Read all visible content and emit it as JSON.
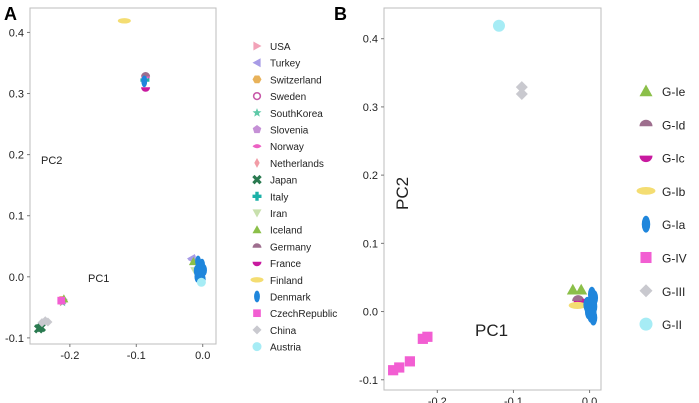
{
  "chart_data": [
    {
      "type": "scatter",
      "panel": "A",
      "xlabel": "PC1",
      "ylabel": "PC2",
      "xlim": [
        -0.26,
        0.02
      ],
      "ylim": [
        -0.11,
        0.44
      ],
      "xticks": [
        "-0.2",
        "-0.1",
        "0.0"
      ],
      "yticks": [
        "-0.1",
        "0.0",
        "0.1",
        "0.2",
        "0.3",
        "0.4"
      ],
      "series": [
        {
          "name": "USA",
          "shape": "tri-right",
          "color": "#f2a2b8",
          "points": [
            [
              -0.005,
              0.008
            ]
          ]
        },
        {
          "name": "Turkey",
          "shape": "tri-left",
          "color": "#a79be6",
          "points": [
            [
              -0.017,
              0.03
            ],
            [
              -0.016,
              0.028
            ]
          ]
        },
        {
          "name": "Switzerland",
          "shape": "hexagon",
          "color": "#e8b25a",
          "points": [
            [
              -0.212,
              -0.038
            ]
          ]
        },
        {
          "name": "Sweden",
          "shape": "ring",
          "color": "#c758a8",
          "points": [
            [
              -0.086,
              0.327
            ],
            [
              -0.004,
              0.005
            ]
          ]
        },
        {
          "name": "SouthKorea",
          "shape": "star",
          "color": "#5fc9a8",
          "points": [
            [
              -0.211,
              -0.042
            ]
          ]
        },
        {
          "name": "Slovenia",
          "shape": "pentagon",
          "color": "#c590d6",
          "points": [
            [
              -0.21,
              -0.039
            ]
          ]
        },
        {
          "name": "Norway",
          "shape": "pinch",
          "color": "#ec61c3",
          "points": [
            [
              -0.086,
              0.328
            ]
          ]
        },
        {
          "name": "Netherlands",
          "shape": "diamond-thin",
          "color": "#f29ca6",
          "points": [
            [
              -0.214,
              -0.04
            ]
          ]
        },
        {
          "name": "Japan",
          "shape": "cross-x",
          "color": "#2a7a50",
          "points": [
            [
              -0.243,
              -0.083
            ],
            [
              -0.247,
              -0.085
            ]
          ]
        },
        {
          "name": "Italy",
          "shape": "plus",
          "color": "#1db1a8",
          "points": [
            [
              -0.087,
              0.322
            ]
          ]
        },
        {
          "name": "Iran",
          "shape": "tri-down",
          "color": "#c8e0ad",
          "points": [
            [
              -0.012,
              0.01
            ]
          ]
        },
        {
          "name": "Iceland",
          "shape": "tri-up",
          "color": "#8bbf49",
          "points": [
            [
              -0.209,
              -0.036
            ],
            [
              -0.014,
              0.025
            ]
          ]
        },
        {
          "name": "Germany",
          "shape": "half-up",
          "color": "#9e6e8e",
          "points": [
            [
              -0.086,
              0.33
            ]
          ]
        },
        {
          "name": "France",
          "shape": "half-down",
          "color": "#c8199f",
          "points": [
            [
              -0.086,
              0.308
            ],
            [
              -0.003,
              -0.003
            ]
          ]
        },
        {
          "name": "Finland",
          "shape": "wide-ellipse",
          "color": "#f4dd72",
          "points": [
            [
              -0.118,
              0.419
            ]
          ]
        },
        {
          "name": "Denmark",
          "shape": "tall-ellipse",
          "color": "#1f86dc",
          "points": [
            [
              -0.088,
              0.32
            ],
            [
              -0.007,
              0.025
            ],
            [
              -0.005,
              0.015
            ],
            [
              -0.001,
              0.02
            ],
            [
              -0.009,
              0.01
            ],
            [
              -0.004,
              0.006
            ],
            [
              0.002,
              0.011
            ],
            [
              -0.008,
              0.0
            ],
            [
              -0.003,
              0.0
            ],
            [
              0.0,
              -0.004
            ]
          ]
        },
        {
          "name": "CzechRepublic",
          "shape": "square",
          "color": "#f25ed2",
          "points": [
            [
              -0.213,
              -0.039
            ]
          ]
        },
        {
          "name": "China",
          "shape": "diamond",
          "color": "#c9c9cf",
          "points": [
            [
              -0.242,
              -0.075
            ],
            [
              -0.237,
              -0.072
            ],
            [
              -0.233,
              -0.074
            ]
          ]
        },
        {
          "name": "Austria",
          "shape": "circle",
          "color": "#a6ecf5",
          "points": [
            [
              -0.002,
              -0.009
            ]
          ]
        }
      ]
    },
    {
      "type": "scatter",
      "panel": "B",
      "xlabel": "PC1",
      "ylabel": "PC2",
      "xlim": [
        -0.27,
        0.015
      ],
      "ylim": [
        -0.115,
        0.445
      ],
      "xticks": [
        "-0.2",
        "-0.1",
        "0.0"
      ],
      "yticks": [
        "-0.1",
        "0.0",
        "0.1",
        "0.2",
        "0.3",
        "0.4"
      ],
      "series": [
        {
          "name": "G-Ie",
          "shape": "tri-up",
          "color": "#8bbf49",
          "points": [
            [
              -0.022,
              0.032
            ],
            [
              -0.011,
              0.032
            ]
          ]
        },
        {
          "name": "G-Id",
          "shape": "half-up",
          "color": "#9e6e8e",
          "points": [
            [
              -0.015,
              0.018
            ]
          ]
        },
        {
          "name": "G-Ic",
          "shape": "half-down",
          "color": "#c8199f",
          "points": [
            [
              -0.013,
              0.013
            ],
            [
              -0.002,
              0.016
            ]
          ]
        },
        {
          "name": "G-Ib",
          "shape": "wide-ellipse",
          "color": "#f4dd72",
          "points": [
            [
              -0.016,
              0.009
            ]
          ]
        },
        {
          "name": "G-Ia",
          "shape": "tall-ellipse",
          "color": "#1f86dc",
          "points": [
            [
              0.003,
              0.025
            ],
            [
              0.004,
              0.015
            ],
            [
              0.005,
              0.007
            ],
            [
              0.004,
              -0.001
            ],
            [
              0.005,
              -0.009
            ],
            [
              -0.003,
              0.01
            ],
            [
              -0.001,
              0.0
            ],
            [
              0.006,
              0.02
            ],
            [
              0.002,
              -0.005
            ]
          ]
        },
        {
          "name": "G-IV",
          "shape": "square",
          "color": "#f25ed2",
          "points": [
            [
              -0.213,
              -0.037
            ],
            [
              -0.219,
              -0.04
            ],
            [
              -0.236,
              -0.073
            ],
            [
              -0.25,
              -0.082
            ],
            [
              -0.258,
              -0.086
            ]
          ]
        },
        {
          "name": "G-III",
          "shape": "diamond",
          "color": "#c9c9cf",
          "points": [
            [
              -0.089,
              0.329
            ],
            [
              -0.089,
              0.319
            ]
          ]
        },
        {
          "name": "G-II",
          "shape": "circle",
          "color": "#a6ecf5",
          "points": [
            [
              -0.119,
              0.419
            ]
          ]
        }
      ]
    }
  ],
  "panel_a_letter": "A",
  "panel_b_letter": "B"
}
